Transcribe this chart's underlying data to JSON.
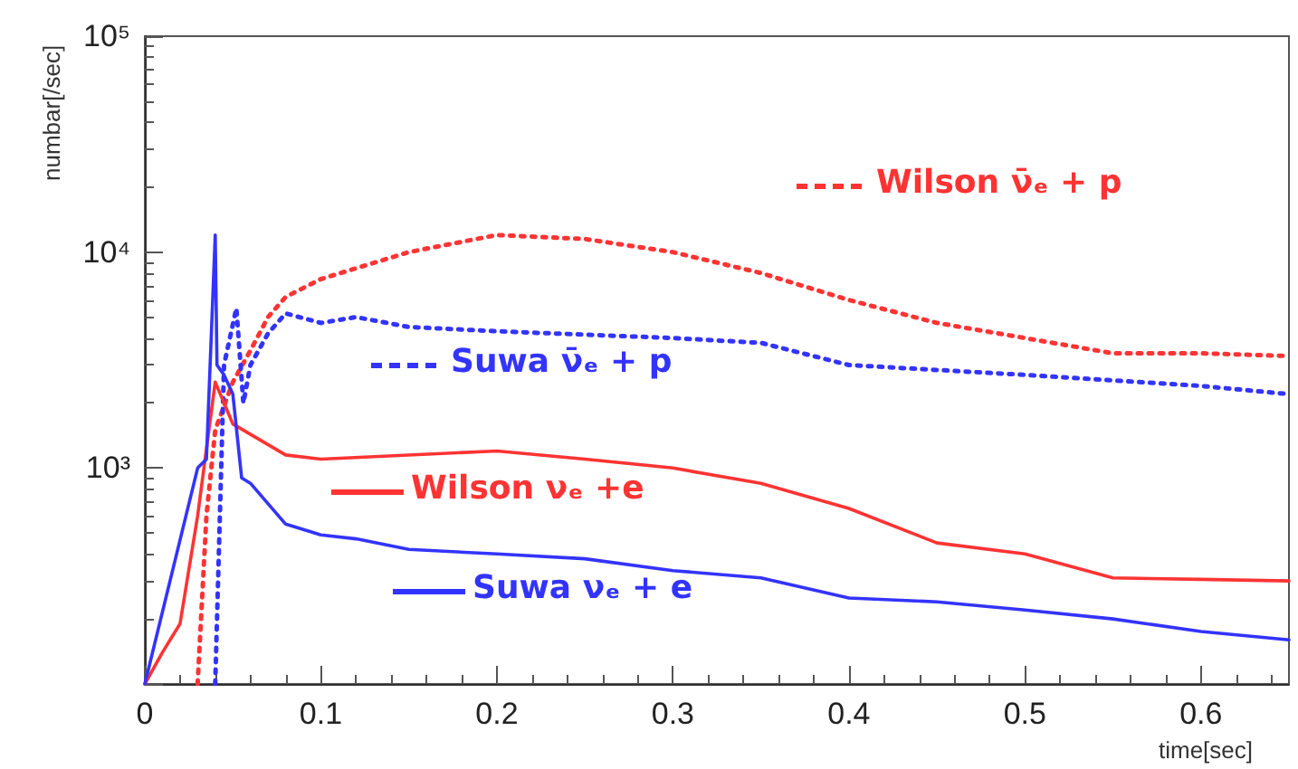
{
  "chart_data": {
    "type": "line",
    "xlabel": "time[sec]",
    "ylabel": "numbar[/sec]",
    "log": "y",
    "grid": false,
    "legend": "bottom right",
    "marker": "none",
    "xlim": [
      0,
      0.65
    ],
    "xticks": [
      {
        "value": 0,
        "label": "0"
      },
      0.1,
      0.2,
      0.3,
      0.4,
      0.5,
      0.6
    ],
    "ylim": [
      100,
      100000
    ],
    "yticks": [
      {
        "value": 100,
        "label": null
      },
      {
        "value": 1000,
        "label": "10³"
      },
      {
        "value": 10000,
        "label": "10⁴"
      },
      {
        "value": 100000,
        "label": "10⁵"
      }
    ],
    "series": [
      {
        "name": "Wilson ν̄ₑ + p",
        "color": "#ff3333",
        "line_style": "dotted",
        "x": [
          0.03,
          0.035,
          0.04,
          0.05,
          0.06,
          0.07,
          0.08,
          0.1,
          0.15,
          0.2,
          0.25,
          0.3,
          0.35,
          0.4,
          0.45,
          0.5,
          0.55,
          0.6,
          0.65
        ],
        "values": [
          100,
          600,
          1500,
          2500,
          3500,
          5000,
          6200,
          7500,
          10000,
          12000,
          11500,
          10000,
          8000,
          6000,
          4700,
          4000,
          3400,
          3400,
          3300
        ]
      },
      {
        "name": "Suwa ν̄ₑ + p",
        "color": "#3333ff",
        "line_style": "dotted",
        "x": [
          0.04,
          0.045,
          0.052,
          0.056,
          0.06,
          0.07,
          0.08,
          0.1,
          0.12,
          0.15,
          0.2,
          0.3,
          0.35,
          0.4,
          0.5,
          0.6,
          0.65
        ],
        "values": [
          100,
          3000,
          5500,
          2000,
          3000,
          4200,
          5200,
          4700,
          5000,
          4500,
          4300,
          4000,
          3800,
          3000,
          2700,
          2400,
          2200
        ]
      },
      {
        "name": "Wilson νₑ +e",
        "color": "#ff3333",
        "line_style": "solid",
        "x": [
          0,
          0.01,
          0.02,
          0.03,
          0.04,
          0.05,
          0.08,
          0.1,
          0.2,
          0.25,
          0.3,
          0.35,
          0.4,
          0.45,
          0.5,
          0.55,
          0.6,
          0.65
        ],
        "values": [
          100,
          140,
          190,
          600,
          2500,
          1600,
          1150,
          1100,
          1200,
          1100,
          1000,
          850,
          650,
          450,
          400,
          310,
          305,
          300
        ]
      },
      {
        "name": "Suwa νₑ + e",
        "color": "#3333ff",
        "line_style": "solid",
        "x": [
          0,
          0.03,
          0.035,
          0.04,
          0.041,
          0.045,
          0.05,
          0.055,
          0.06,
          0.08,
          0.1,
          0.12,
          0.15,
          0.2,
          0.25,
          0.3,
          0.35,
          0.4,
          0.45,
          0.5,
          0.55,
          0.6,
          0.65
        ],
        "values": [
          100,
          1000,
          1100,
          12000,
          3000,
          2700,
          2200,
          900,
          850,
          550,
          490,
          470,
          420,
          400,
          380,
          335,
          310,
          250,
          240,
          220,
          200,
          175,
          160
        ]
      }
    ]
  }
}
